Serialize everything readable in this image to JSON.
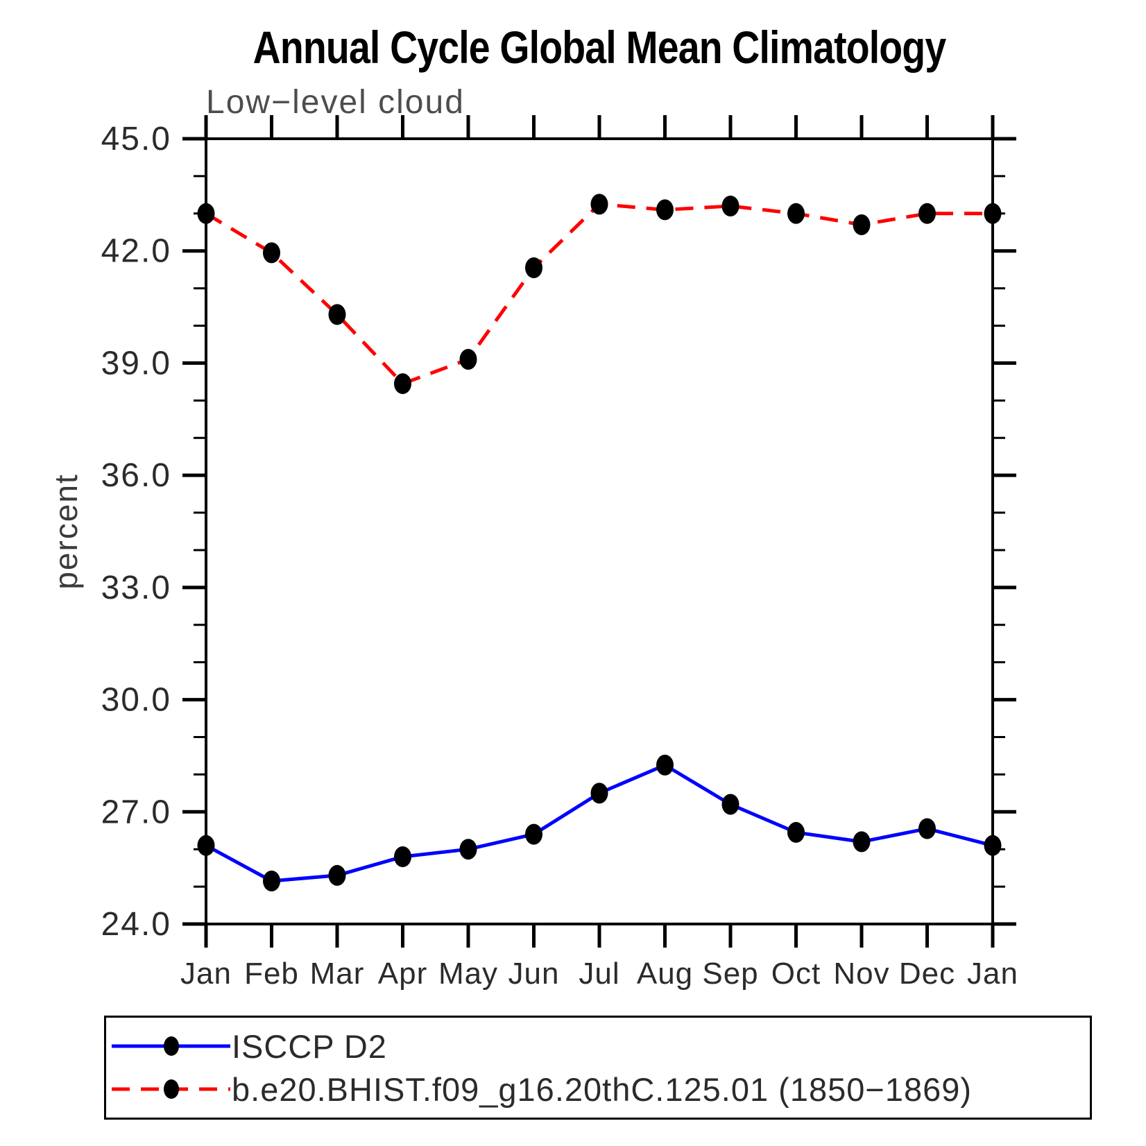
{
  "title": "Annual Cycle Global Mean Climatology",
  "subtitle": "Low−level cloud",
  "ylabel": "percent",
  "colors": {
    "axis": "#000000",
    "marker": "#000000",
    "background": "#ffffff",
    "isccp_line": "#0000ff",
    "model_line": "#ff0000",
    "subtitle_text": "#4d4d4d"
  },
  "chart_data": {
    "type": "line",
    "title": "Annual Cycle Global Mean Climatology",
    "subtitle": "Low−level cloud",
    "xlabel": "",
    "ylabel": "percent",
    "categories": [
      "Jan",
      "Feb",
      "Mar",
      "Apr",
      "May",
      "Jun",
      "Jul",
      "Aug",
      "Sep",
      "Oct",
      "Nov",
      "Dec",
      "Jan"
    ],
    "ylim": [
      24.0,
      45.0
    ],
    "ytick_major": [
      24.0,
      27.0,
      30.0,
      33.0,
      36.0,
      39.0,
      42.0,
      45.0
    ],
    "ytick_major_labels": [
      "24.0",
      "27.0",
      "30.0",
      "33.0",
      "36.0",
      "39.0",
      "42.0",
      "45.0"
    ],
    "ytick_minor_step": 1.0,
    "grid": false,
    "legend_position": "bottom-left-box",
    "series": [
      {
        "name": "ISCCP D2",
        "color": "#0000ff",
        "line_style": "solid",
        "marker": "filled-circle",
        "marker_color": "#000000",
        "values": [
          26.1,
          25.15,
          25.3,
          25.8,
          26.0,
          26.4,
          27.5,
          28.25,
          27.2,
          26.45,
          26.2,
          26.55,
          26.1
        ]
      },
      {
        "name": "b.e20.BHIST.f09_g16.20thC.125.01 (1850−1869)",
        "color": "#ff0000",
        "line_style": "dashed",
        "marker": "filled-circle",
        "marker_color": "#000000",
        "values": [
          43.0,
          41.95,
          40.3,
          38.45,
          39.1,
          41.55,
          43.25,
          43.1,
          43.2,
          43.0,
          42.7,
          43.0,
          43.0
        ]
      }
    ]
  }
}
